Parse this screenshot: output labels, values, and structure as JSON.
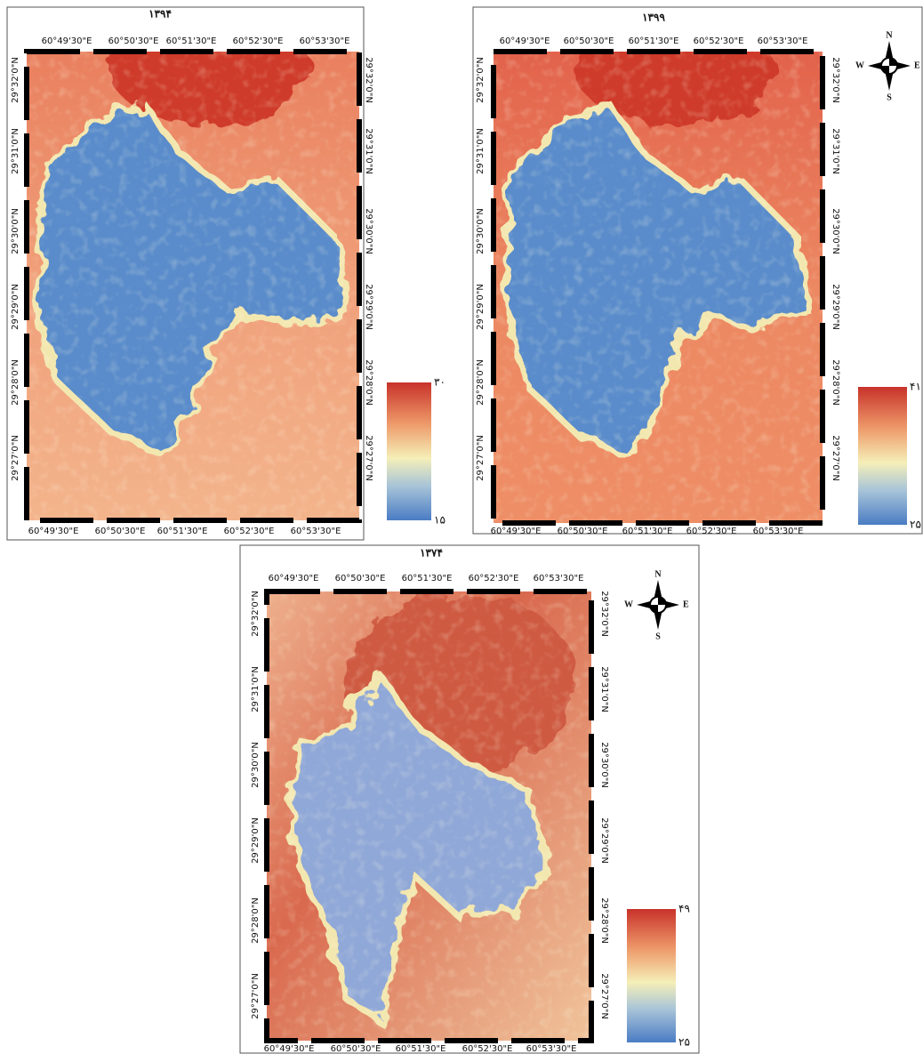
{
  "panels": [
    {
      "title": "۱۳۹۴",
      "top_labels": [
        "60°49'30\"E",
        "60°50'30\"E",
        "60°51'30\"E",
        "60°52'30\"E",
        "60°53'30\"E"
      ],
      "bottom_labels": [
        "60°49'30\"E",
        "60°50'30\"E",
        "60°51'30\"E",
        "60°52'30\"E",
        "60°53'30\"E"
      ],
      "left_labels": [
        "29°32'0\"N",
        "29°31'0\"N",
        "29°30'0\"N",
        "29°29'0\"N",
        "29°28'0\"N",
        "29°27'0\"N"
      ],
      "right_labels": [
        "29°32'0\"N",
        "29°31'0\"N",
        "29°30'0\"N",
        "29°29'0\"N",
        "29°28'0\"N",
        "29°27'0\"N"
      ],
      "legend": {
        "max": "۳۰",
        "min": "۱۵"
      }
    },
    {
      "title": "۱۳۹۹",
      "top_labels": [
        "60°49'30\"E",
        "60°50'30\"E",
        "60°51'30\"E",
        "60°52'30\"E",
        "60°53'30\"E"
      ],
      "bottom_labels": [
        "60°49'30\"E",
        "60°50'30\"E",
        "60°51'30\"E",
        "60°52'30\"E",
        "60°53'30\"E"
      ],
      "left_labels": [
        "29°32'0\"N",
        "29°31'0\"N",
        "29°30'0\"N",
        "29°29'0\"N",
        "29°28'0\"N",
        "29°27'0\"N"
      ],
      "right_labels": [
        "29°32'0\"N",
        "29°31'0\"N",
        "29°30'0\"N",
        "29°29'0\"N",
        "29°28'0\"N",
        "29°27'0\"N"
      ],
      "legend": {
        "max": "۴۱",
        "min": "۲۵"
      },
      "compass": {
        "n": "N",
        "s": "S",
        "w": "W",
        "e": "E"
      }
    },
    {
      "title": "۱۳۷۴",
      "top_labels": [
        "60°49'30\"E",
        "60°50'30\"E",
        "60°51'30\"E",
        "60°52'30\"E",
        "60°53'30\"E"
      ],
      "bottom_labels": [
        "60°49'30\"E",
        "60°50'30\"E",
        "60°51'30\"E",
        "60°52'30\"E",
        "60°53'30\"E"
      ],
      "left_labels": [
        "29°32'0\"N",
        "29°31'0\"N",
        "29°30'0\"N",
        "29°29'0\"N",
        "29°28'0\"N",
        "29°27'0\"N"
      ],
      "right_labels": [
        "29°32'0\"N",
        "29°31'0\"N",
        "29°30'0\"N",
        "29°29'0\"N",
        "29°28'0\"N",
        "29°27'0\"N"
      ],
      "legend": {
        "max": "۴۹",
        "min": "۲۵"
      },
      "compass": {
        "n": "N",
        "s": "S",
        "w": "W",
        "e": "E"
      }
    }
  ]
}
